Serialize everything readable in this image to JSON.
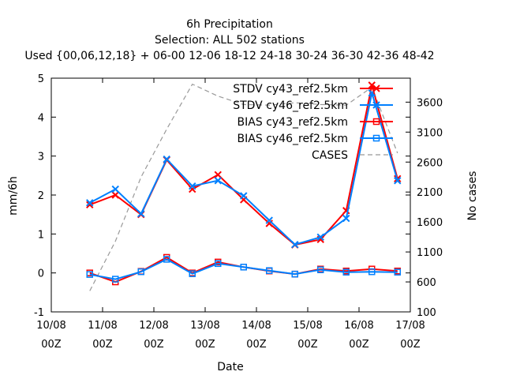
{
  "chart_data": {
    "type": "line",
    "title": "6h Precipitation",
    "subtitle_1": "Selection: ALL    502 stations",
    "subtitle_2": "Used {00,06,12,18} + 06-00 12-06 18-12 24-18 30-24 36-30 42-36 48-42",
    "xlabel": "Date",
    "ylabel": "mm/6h",
    "y2label": "No cases",
    "xlim": [
      0,
      28
    ],
    "ylim": [
      -1,
      5
    ],
    "y2lim": [
      100,
      4000
    ],
    "x_ticks": [
      {
        "x": 0,
        "line1": "10/08",
        "line2": "00Z"
      },
      {
        "x": 4,
        "line1": "11/08",
        "line2": "00Z"
      },
      {
        "x": 8,
        "line1": "12/08",
        "line2": "00Z"
      },
      {
        "x": 12,
        "line1": "13/08",
        "line2": "00Z"
      },
      {
        "x": 16,
        "line1": "14/08",
        "line2": "00Z"
      },
      {
        "x": 20,
        "line1": "15/08",
        "line2": "00Z"
      },
      {
        "x": 24,
        "line1": "16/08",
        "line2": "00Z"
      },
      {
        "x": 28,
        "line1": "17/08",
        "line2": "00Z"
      }
    ],
    "y_ticks": [
      -1,
      0,
      1,
      2,
      3,
      4,
      5
    ],
    "y2_ticks": [
      100,
      600,
      1100,
      1600,
      2100,
      2600,
      3100,
      3600
    ],
    "x": [
      3,
      5,
      7,
      9,
      11,
      13,
      15,
      17,
      19,
      21,
      23,
      25,
      27
    ],
    "series": [
      {
        "name": "STDV cy43_ref2.5km",
        "color": "#ff0000",
        "marker": "x",
        "axis": "y",
        "values": [
          1.75,
          2.0,
          1.5,
          2.9,
          2.15,
          2.52,
          1.88,
          1.27,
          0.72,
          0.86,
          1.6,
          4.82,
          2.42
        ]
      },
      {
        "name": "STDV cy46_ref2.5km",
        "color": "#0080ff",
        "marker": "x",
        "axis": "y",
        "values": [
          1.8,
          2.15,
          1.52,
          2.92,
          2.23,
          2.37,
          1.98,
          1.35,
          0.73,
          0.92,
          1.4,
          4.62,
          2.37
        ]
      },
      {
        "name": "BIAS cy43_ref2.5km",
        "color": "#ff0000",
        "marker": "square",
        "axis": "y",
        "values": [
          0.0,
          -0.23,
          0.04,
          0.4,
          0.0,
          0.28,
          0.15,
          0.05,
          -0.03,
          0.1,
          0.05,
          0.1,
          0.05
        ]
      },
      {
        "name": "BIAS cy46_ref2.5km",
        "color": "#0080ff",
        "marker": "square",
        "axis": "y",
        "values": [
          -0.04,
          -0.16,
          0.03,
          0.35,
          -0.02,
          0.24,
          0.15,
          0.06,
          -0.03,
          0.08,
          0.02,
          0.03,
          0.02
        ]
      },
      {
        "name": "CASES",
        "color": "#999999",
        "marker": "none",
        "axis": "y2",
        "dashed": true,
        "values": [
          450,
          1280,
          2350,
          3150,
          3900,
          3700,
          3560,
          3550,
          3590,
          3560,
          3550,
          3850,
          2750
        ]
      }
    ],
    "grid": false,
    "legend_placement": "top-right"
  }
}
